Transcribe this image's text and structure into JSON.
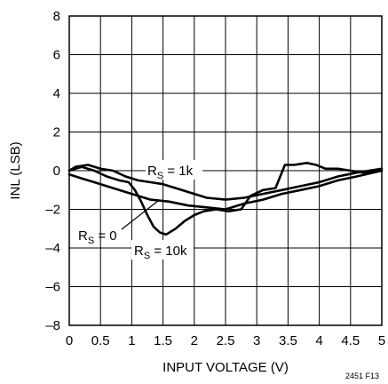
{
  "chart_data": {
    "type": "line",
    "title": "",
    "xlabel": "INPUT VOLTAGE (V)",
    "ylabel": "INL (LSB)",
    "xlim": [
      0,
      5
    ],
    "ylim": [
      -8,
      8
    ],
    "x_ticks": [
      "0",
      "0.5",
      "1",
      "1.5",
      "2",
      "2.5",
      "3",
      "3.5",
      "4",
      "4.5",
      "5"
    ],
    "y_ticks": [
      "8",
      "6",
      "4",
      "2",
      "0",
      "–2",
      "–4",
      "–6",
      "–8"
    ],
    "grid": true,
    "figure_id": "2451 F13",
    "series": [
      {
        "name": "RS = 1k",
        "label_main": "R",
        "label_sub": "S",
        "label_rest": " = 1k",
        "points": [
          [
            0,
            0.0
          ],
          [
            0.1,
            0.2
          ],
          [
            0.3,
            0.3
          ],
          [
            0.5,
            0.1
          ],
          [
            0.7,
            0.0
          ],
          [
            0.9,
            -0.3
          ],
          [
            1.1,
            -0.5
          ],
          [
            1.3,
            -0.6
          ],
          [
            1.5,
            -0.7
          ],
          [
            1.8,
            -1.0
          ],
          [
            2.0,
            -1.2
          ],
          [
            2.2,
            -1.4
          ],
          [
            2.5,
            -1.5
          ],
          [
            2.8,
            -1.4
          ],
          [
            3.1,
            -1.2
          ],
          [
            3.4,
            -1.0
          ],
          [
            3.7,
            -0.8
          ],
          [
            4.0,
            -0.6
          ],
          [
            4.3,
            -0.3
          ],
          [
            4.6,
            -0.1
          ],
          [
            5.0,
            0.1
          ]
        ]
      },
      {
        "name": "RS = 0",
        "label_main": "R",
        "label_sub": "S",
        "label_rest": " = 0",
        "points": [
          [
            0,
            -0.2
          ],
          [
            0.2,
            -0.4
          ],
          [
            0.4,
            -0.6
          ],
          [
            0.7,
            -0.9
          ],
          [
            1.0,
            -1.2
          ],
          [
            1.3,
            -1.5
          ],
          [
            1.6,
            -1.6
          ],
          [
            1.9,
            -1.8
          ],
          [
            2.2,
            -1.9
          ],
          [
            2.5,
            -2.0
          ],
          [
            2.8,
            -1.7
          ],
          [
            3.1,
            -1.5
          ],
          [
            3.4,
            -1.2
          ],
          [
            3.7,
            -1.0
          ],
          [
            4.0,
            -0.8
          ],
          [
            4.3,
            -0.5
          ],
          [
            4.6,
            -0.3
          ],
          [
            5.0,
            0.0
          ]
        ]
      },
      {
        "name": "RS = 10k",
        "label_main": "R",
        "label_sub": "S",
        "label_rest": " = 10k",
        "points": [
          [
            0,
            0.0
          ],
          [
            0.1,
            0.1
          ],
          [
            0.2,
            0.2
          ],
          [
            0.4,
            0.0
          ],
          [
            0.6,
            -0.3
          ],
          [
            0.8,
            -0.5
          ],
          [
            0.95,
            -0.6
          ],
          [
            1.05,
            -1.0
          ],
          [
            1.15,
            -1.6
          ],
          [
            1.25,
            -2.3
          ],
          [
            1.35,
            -2.9
          ],
          [
            1.45,
            -3.2
          ],
          [
            1.55,
            -3.3
          ],
          [
            1.7,
            -3.0
          ],
          [
            1.85,
            -2.6
          ],
          [
            2.0,
            -2.3
          ],
          [
            2.15,
            -2.1
          ],
          [
            2.35,
            -2.0
          ],
          [
            2.55,
            -2.1
          ],
          [
            2.75,
            -2.0
          ],
          [
            2.9,
            -1.3
          ],
          [
            3.1,
            -1.0
          ],
          [
            3.3,
            -0.9
          ],
          [
            3.45,
            0.3
          ],
          [
            3.6,
            0.3
          ],
          [
            3.8,
            0.4
          ],
          [
            3.95,
            0.3
          ],
          [
            4.1,
            0.1
          ],
          [
            4.3,
            0.1
          ],
          [
            4.5,
            0.0
          ],
          [
            4.7,
            -0.1
          ],
          [
            5.0,
            0.0
          ]
        ]
      }
    ]
  }
}
